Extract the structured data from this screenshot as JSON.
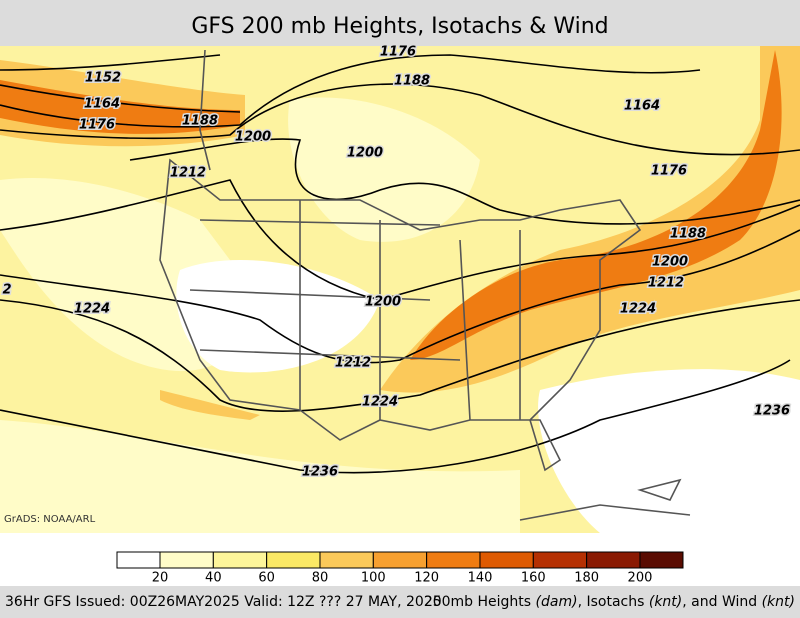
{
  "title": "GFS 200 mb Heights, Isotachs & Wind",
  "contour_labels": [
    1176,
    1188,
    1152,
    1164,
    1176,
    1188,
    1200,
    1200,
    1212,
    1164,
    1176,
    1188,
    1200,
    1212,
    1224,
    1200,
    1212,
    1224,
    1224,
    1236,
    1236,
    2
  ],
  "credit": "GrADS: NOAA/ARL",
  "colorbar": {
    "labels": [
      20,
      40,
      60,
      80,
      100,
      120,
      140,
      160,
      180,
      200
    ],
    "colors": [
      "#ffffff",
      "#fffcc8",
      "#fdf59a",
      "#fae865",
      "#fbc95a",
      "#f7a030",
      "#ef7c12",
      "#de5a02",
      "#b53002",
      "#8a1a02",
      "#5a0c02"
    ]
  },
  "footer": {
    "left": "36Hr GFS Issued: 00Z26MAY2025 Valid: 12Z ??? 27 MAY, 2025",
    "right": [
      "200mb Heights ",
      "(dam)",
      ", Isotachs ",
      "(knt)",
      ", and Wind ",
      "(knt)"
    ]
  }
}
